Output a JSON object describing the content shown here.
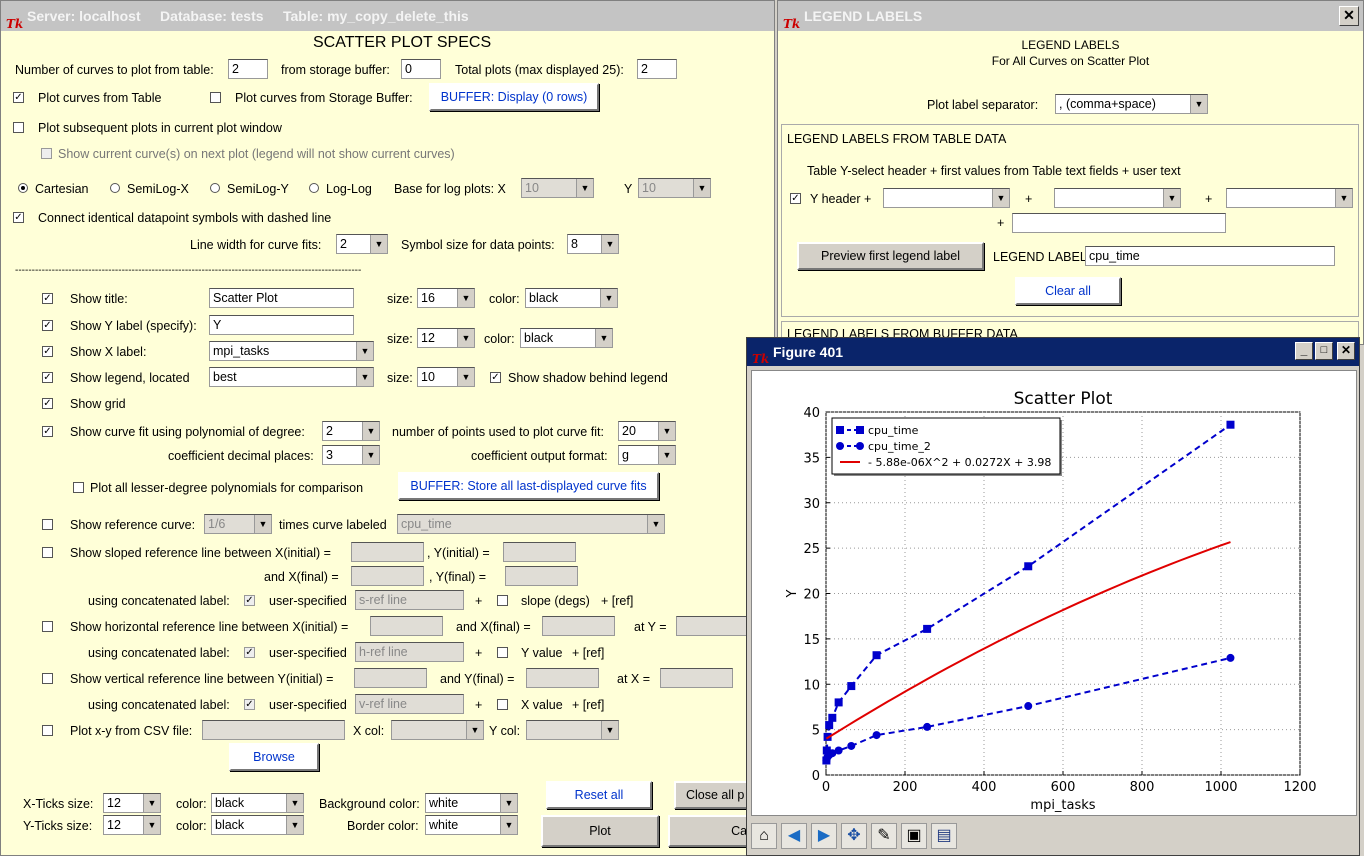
{
  "main": {
    "title": "Server: localhost     Database: tests     Table: my_copy_delete_this",
    "heading": "SCATTER PLOT SPECS",
    "num_curves_label": "Number of curves to plot from table:",
    "num_curves": "2",
    "storage_label": "from storage buffer:",
    "storage": "0",
    "total_label": "Total plots (max displayed 25):",
    "total": "2",
    "plot_table": "Plot curves from Table",
    "plot_buffer": "Plot curves from Storage Buffer:",
    "buffer_display": "BUFFER: Display (0 rows)",
    "subsequent": "Plot subsequent plots in current plot window",
    "show_current": "Show current curve(s) on next plot (legend will not show current curves)",
    "cartesian": "Cartesian",
    "semilogx": "SemiLog-X",
    "semilogy": "SemiLog-Y",
    "loglog": "Log-Log",
    "base_label": "Base for log plots:  X",
    "base_x": "10",
    "base_y_label": "Y",
    "base_y": "10",
    "connect": "Connect identical datapoint symbols with dashed line",
    "linewidth_label": "Line width for curve fits:",
    "linewidth": "2",
    "symbol_label": "Symbol size for data points:",
    "symbol": "8",
    "dashes": "--------------------------------------------------------------------------------------------------------",
    "show_title": "Show title:",
    "title_val": "Scatter Plot",
    "size_label": "size:",
    "title_size": "16",
    "color_label": "color:",
    "title_color": "black",
    "show_y": "Show Y label (specify):",
    "y_val": "Y",
    "show_x": "Show X label:",
    "x_val": "mpi_tasks",
    "label_size": "12",
    "label_color": "black",
    "show_legend": "Show legend, located",
    "legend_loc": "best",
    "legend_size": "10",
    "shadow": "Show shadow behind legend",
    "show_grid": "Show grid",
    "curvefit": "Show curve fit using polynomial of degree:",
    "degree": "2",
    "npoints_label": "number of points used to plot curve fit:",
    "npoints": "20",
    "coef_label": "coefficient decimal places:",
    "coef": "3",
    "coef_fmt_label": "coefficient output format:",
    "coef_fmt": "g",
    "lesser": "Plot all lesser-degree polynomials for comparison",
    "buffer_store": "BUFFER: Store all last-displayed curve fits",
    "ref_curve": "Show reference curve:",
    "ref_ratio": "1/6",
    "times_label": "times curve labeled",
    "ref_curve_sel": "cpu_time",
    "sloped": "Show sloped reference line between X(initial) =",
    "yinit": ", Y(initial) =",
    "andxfinal": "and X(final) =",
    "yfinal": ",  Y(final) =",
    "using_concat": "using concatenated label:",
    "user_specified": "user-specified",
    "sref": "s-ref line",
    "plus": "+",
    "slope": "slope (degs)",
    "plus_ref": "+  [ref]",
    "horiz": "Show horizontal reference line between X(initial) =",
    "and_xfinal2": "and X(final) =",
    "at_y": "at Y =",
    "href": "h-ref line",
    "yvalue": "Y value",
    "vert": "Show vertical reference line between Y(initial) =",
    "and_yfinal": "and Y(final) =",
    "at_x": "at X =",
    "vref": "v-ref line",
    "xvalue": "X value",
    "csv": "Plot x-y from CSV file:",
    "xcol": "X col:",
    "ycol": "Y col:",
    "browse": "Browse",
    "xticks": "X-Ticks size:",
    "xticks_val": "12",
    "yticks": "Y-Ticks size:",
    "yticks_val": "12",
    "tick_color_label": "color:",
    "xtick_color": "black",
    "ytick_color": "black",
    "bg_label": "Background color:",
    "bg_val": "white",
    "border_label": "Border color:",
    "border_val": "white",
    "reset": "Reset all",
    "close": "Close all p",
    "plot": "Plot",
    "cancel": "Cancel"
  },
  "legend": {
    "title": "LEGEND LABELS",
    "h1": "LEGEND LABELS",
    "h2": "For All Curves on Scatter Plot",
    "sep_label": "Plot label separator:",
    "sep": ", (comma+space)",
    "section": "LEGEND LABELS FROM TABLE DATA",
    "desc": "Table Y-select header + first values from Table text fields + user text",
    "yheader": "Y header +",
    "plus": "+",
    "preview": "Preview first legend label",
    "label_label": "LEGEND LABEL:",
    "label_val": "cpu_time",
    "clear": "Clear all",
    "section2": "LEGEND LABELS FROM BUFFER DATA"
  },
  "figure": {
    "title": "Figure 401",
    "toolbar": [
      "home-icon",
      "back-icon",
      "forward-icon",
      "pan-icon",
      "configure-icon",
      "zoom-icon",
      "save-icon"
    ]
  },
  "chart_data": {
    "type": "scatter",
    "title": "Scatter Plot",
    "xlabel": "mpi_tasks",
    "ylabel": "Y",
    "xlim": [
      0,
      1200
    ],
    "ylim": [
      0,
      40
    ],
    "xticks": [
      0,
      200,
      400,
      600,
      800,
      1000,
      1200
    ],
    "yticks": [
      0,
      5,
      10,
      15,
      20,
      25,
      30,
      35,
      40
    ],
    "grid": true,
    "legend_position": "top-left",
    "series": [
      {
        "name": "cpu_time",
        "marker": "square",
        "style": "dashed",
        "color": "#0000cc",
        "x": [
          1,
          2,
          4,
          8,
          16,
          32,
          64,
          128,
          256,
          512,
          1024
        ],
        "y": [
          1.6,
          2.7,
          4.2,
          5.5,
          6.3,
          8.0,
          9.8,
          13.2,
          16.1,
          23.0,
          38.6
        ]
      },
      {
        "name": "cpu_time_2",
        "marker": "circle",
        "style": "dashed",
        "color": "#0000cc",
        "x": [
          1,
          2,
          4,
          8,
          16,
          32,
          64,
          128,
          256,
          512,
          1024
        ],
        "y": [
          1.6,
          1.8,
          2.0,
          2.2,
          2.4,
          2.7,
          3.2,
          4.4,
          5.3,
          7.6,
          12.9
        ]
      },
      {
        "name": "- 5.88e-06X^2 + 0.0272X + 3.98",
        "style": "solid",
        "color": "#e00000",
        "fit": [
          -5.88e-06,
          0.0272,
          3.98
        ],
        "xrange": [
          1,
          1024
        ]
      }
    ]
  }
}
